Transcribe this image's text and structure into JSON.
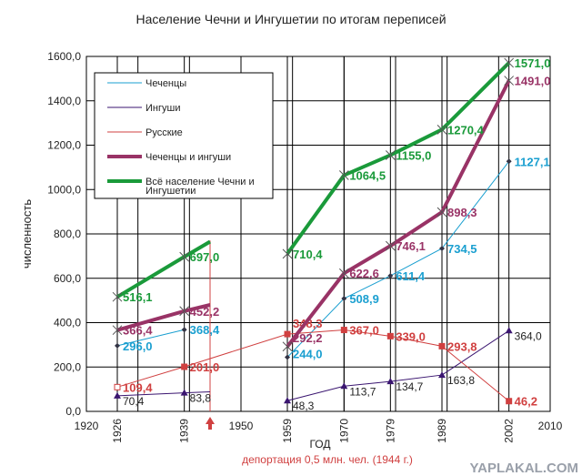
{
  "chart_data": {
    "type": "line",
    "title": "Население Чечни и Ингушетии по итогам переписей",
    "xlabel": "ГОД",
    "ylabel": "численность",
    "xlim": [
      1920,
      2010
    ],
    "ylim": [
      0,
      1600
    ],
    "x": [
      1926,
      1939,
      1959,
      1970,
      1979,
      1989,
      2002
    ],
    "xticks": [
      "1920",
      "1926",
      "1939",
      "1950",
      "1959",
      "1970",
      "1979",
      "1989",
      "2002",
      "2010"
    ],
    "yticks": [
      "0,0",
      "200,0",
      "400,0",
      "600,0",
      "800,0",
      "1000,0",
      "1200,0",
      "1400,0",
      "1600,0"
    ],
    "series": [
      {
        "name": "Чеченцы",
        "color": "#1a9fd0",
        "marker": "diamond",
        "values": [
          296.0,
          368.4,
          244.0,
          508.9,
          611.4,
          734.5,
          1127.1
        ],
        "labels": [
          "296,0",
          "368,4",
          "244,0",
          "508,9",
          "611,4",
          "734,5",
          "1127,1"
        ]
      },
      {
        "name": "Ингуши",
        "color": "#3a1570",
        "marker": "triangle",
        "values": [
          70.4,
          83.8,
          48.3,
          113.7,
          134.7,
          163.8,
          364.0
        ],
        "labels": [
          "70,4",
          "83,8",
          "48,3",
          "113,7",
          "134,7",
          "163,8",
          "364,0"
        ]
      },
      {
        "name": "Русские",
        "color": "#d04040",
        "marker": "square",
        "values": [
          109.4,
          201.0,
          348.3,
          367.0,
          339.0,
          293.8,
          46.2
        ],
        "labels": [
          "109,4",
          "201,0",
          "348,3",
          "367,0",
          "339,0",
          "293,8",
          "46,2"
        ]
      },
      {
        "name": "Чеченцы и ингуши",
        "color": "#993366",
        "marker": "star",
        "values": [
          366.4,
          452.2,
          292.2,
          622.6,
          746.1,
          898.3,
          1491.0
        ],
        "labels": [
          "366,4",
          "452,2",
          "292,2",
          "622,6",
          "746,1",
          "898,3",
          "1491,0"
        ]
      },
      {
        "name": "Всё население Чечни и Ингушетии",
        "color": "#1a9a3a",
        "marker": "x",
        "values": [
          516.1,
          697.0,
          710.4,
          1064.5,
          1155.0,
          1270.4,
          1571.0
        ],
        "labels": [
          "516,1",
          "697,0",
          "710,4",
          "1064,5",
          "1155,0",
          "1270,4",
          "1571,0"
        ]
      }
    ],
    "legend_position": "top-left",
    "annotation": "депортация 0,5 млн. чел. (1944 г.)",
    "annotation_year": 1944
  },
  "watermark": "YAPLAKAL.COM"
}
